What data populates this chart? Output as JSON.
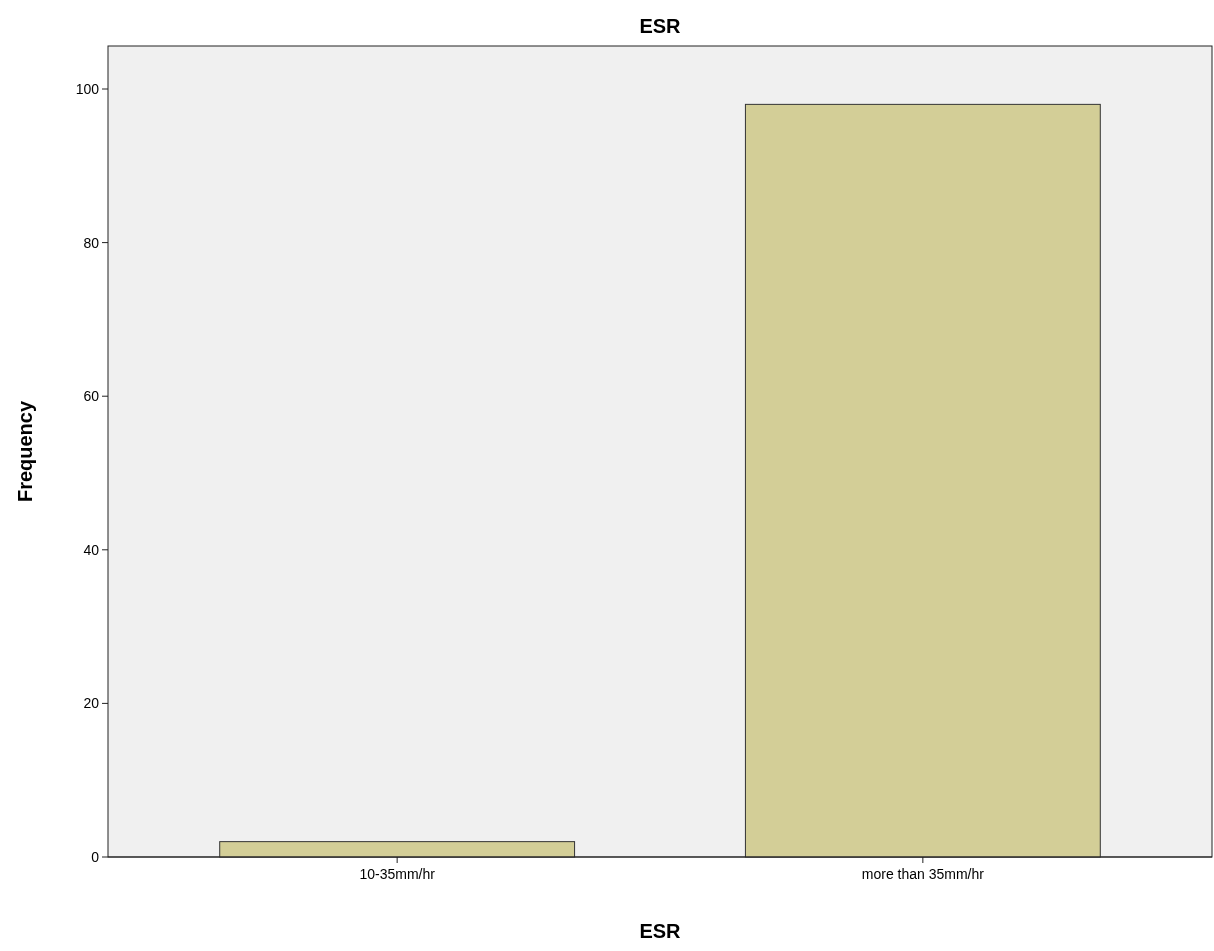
{
  "chart_data": {
    "type": "bar",
    "title": "ESR",
    "xlabel": "ESR",
    "ylabel": "Frequency",
    "categories": [
      "10-35mm/hr",
      "more than 35mm/hr"
    ],
    "values": [
      2,
      98
    ],
    "color": "#d3ce97",
    "ylim": [
      0,
      105.6
    ],
    "yticks": [
      0,
      20,
      40,
      60,
      80,
      100
    ],
    "grid": false
  }
}
